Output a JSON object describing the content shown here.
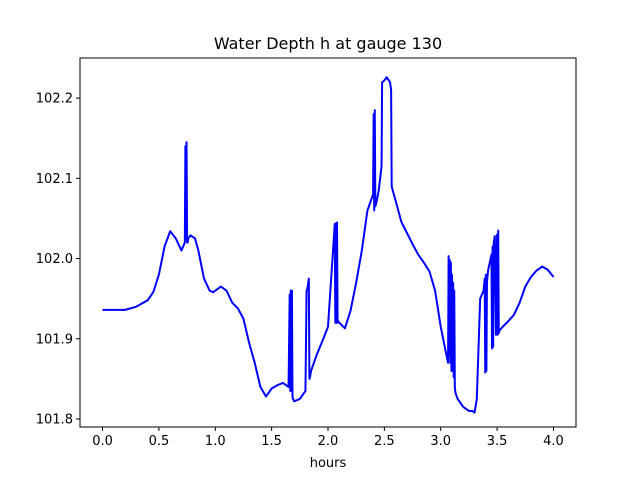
{
  "chart_data": {
    "type": "line",
    "title": "Water Depth h at gauge 130",
    "xlabel": "hours",
    "ylabel": "",
    "xlim": [
      -0.2,
      4.2
    ],
    "ylim": [
      101.79,
      102.25
    ],
    "xticks": [
      0.0,
      0.5,
      1.0,
      1.5,
      2.0,
      2.5,
      3.0,
      3.5,
      4.0
    ],
    "xtick_labels": [
      "0.0",
      "0.5",
      "1.0",
      "1.5",
      "2.0",
      "2.5",
      "3.0",
      "3.5",
      "4.0"
    ],
    "yticks": [
      101.8,
      101.9,
      102.0,
      102.1,
      102.2
    ],
    "ytick_labels": [
      "101.8",
      "101.9",
      "102.0",
      "102.1",
      "102.2"
    ],
    "grid": false,
    "colors": {
      "line": "#0000ff",
      "axes": "#000000",
      "background": "#ffffff"
    },
    "series": [
      {
        "x": [
          0.0,
          0.2,
          0.3,
          0.4,
          0.45,
          0.5,
          0.55,
          0.6,
          0.65,
          0.7,
          0.73,
          0.735,
          0.74,
          0.745,
          0.75,
          0.755,
          0.76,
          0.78,
          0.82,
          0.85,
          0.9,
          0.95,
          0.98,
          1.0,
          1.05,
          1.1,
          1.15,
          1.2,
          1.25,
          1.3,
          1.35,
          1.4,
          1.45,
          1.5,
          1.55,
          1.6,
          1.65,
          1.66,
          1.665,
          1.67,
          1.675,
          1.68,
          1.685,
          1.69,
          1.7,
          1.75,
          1.8,
          1.81,
          1.815,
          1.82,
          1.825,
          1.83,
          1.835,
          1.84,
          1.85,
          1.9,
          1.95,
          2.0,
          2.06,
          2.065,
          2.07,
          2.075,
          2.08,
          2.085,
          2.09,
          2.1,
          2.15,
          2.2,
          2.25,
          2.3,
          2.35,
          2.4,
          2.405,
          2.41,
          2.415,
          2.42,
          2.43,
          2.45,
          2.475,
          2.48,
          2.485,
          2.5,
          2.52,
          2.55,
          2.56,
          2.565,
          2.57,
          2.6,
          2.65,
          2.7,
          2.75,
          2.8,
          2.85,
          2.9,
          2.95,
          3.0,
          3.05,
          3.065,
          3.07,
          3.075,
          3.08,
          3.085,
          3.09,
          3.095,
          3.1,
          3.105,
          3.11,
          3.115,
          3.12,
          3.125,
          3.13,
          3.15,
          3.2,
          3.25,
          3.28,
          3.3,
          3.32,
          3.35,
          3.38,
          3.39,
          3.395,
          3.4,
          3.405,
          3.41,
          3.42,
          3.45,
          3.455,
          3.46,
          3.465,
          3.47,
          3.48,
          3.49,
          3.5,
          3.505,
          3.51,
          3.515,
          3.52,
          3.55,
          3.6,
          3.65,
          3.7,
          3.75,
          3.8,
          3.85,
          3.9,
          3.95,
          4.0
        ],
        "values": [
          101.936,
          101.936,
          101.94,
          101.948,
          101.958,
          101.98,
          102.015,
          102.034,
          102.025,
          102.01,
          102.02,
          102.14,
          102.025,
          102.145,
          102.02,
          102.02,
          102.025,
          102.029,
          102.025,
          102.01,
          101.975,
          101.96,
          101.958,
          101.96,
          101.965,
          101.96,
          101.945,
          101.938,
          101.925,
          101.895,
          101.87,
          101.84,
          101.828,
          101.838,
          101.842,
          101.845,
          101.84,
          101.955,
          101.835,
          101.96,
          101.835,
          101.96,
          101.828,
          101.825,
          101.822,
          101.825,
          101.835,
          101.96,
          101.962,
          101.965,
          101.97,
          101.975,
          101.85,
          101.852,
          101.86,
          101.88,
          101.897,
          101.915,
          102.043,
          101.92,
          102.044,
          101.92,
          102.045,
          101.92,
          101.922,
          101.92,
          101.913,
          101.935,
          101.97,
          102.01,
          102.06,
          102.08,
          102.18,
          102.06,
          102.185,
          102.065,
          102.07,
          102.085,
          102.115,
          102.22,
          102.22,
          102.222,
          102.226,
          102.22,
          102.21,
          102.09,
          102.087,
          102.072,
          102.046,
          102.032,
          102.018,
          102.005,
          101.995,
          101.984,
          101.96,
          101.915,
          101.88,
          101.87,
          102.003,
          101.88,
          101.998,
          101.87,
          101.995,
          101.86,
          101.98,
          101.86,
          101.97,
          101.852,
          101.96,
          101.84,
          101.833,
          101.825,
          101.815,
          101.81,
          101.81,
          101.808,
          101.825,
          101.95,
          101.96,
          101.975,
          101.858,
          101.98,
          101.86,
          101.97,
          101.985,
          102.005,
          101.888,
          102.015,
          101.89,
          102.02,
          102.028,
          101.905,
          102.03,
          101.905,
          102.035,
          101.907,
          101.91,
          101.915,
          101.922,
          101.93,
          101.945,
          101.965,
          101.977,
          101.985,
          101.99,
          101.986,
          101.977
        ]
      }
    ]
  }
}
